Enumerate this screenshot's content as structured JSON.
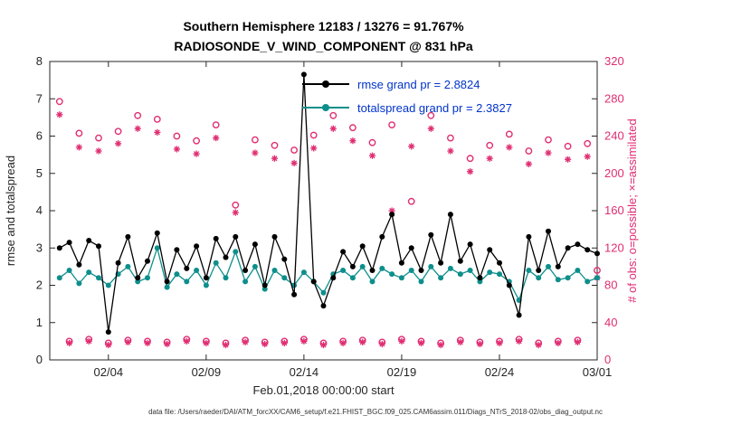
{
  "footer": {
    "data_file": "data file: /Users/raeder/DAI/ATM_forcXX/CAM6_setup/f.e21.FHIST_BGC.f09_025.CAM6assim.011/Diags_NTrS_2018-02/obs_diag_output.nc"
  },
  "colors": {
    "rmse": "#000000",
    "totalspread": "#0d8f8c",
    "obs": "#e02d72",
    "legend_text": "#0033cc",
    "axes": "#262626"
  },
  "chart_data": {
    "type": "line",
    "title_line1": "Southern Hemisphere 12183 / 13276 = 91.767%",
    "title_line2": "RADIOSONDE_V_WIND_COMPONENT @ 831 hPa",
    "xlabel": "Feb.01,2018 00:00:00 start",
    "ylabel_left": "rmse and totalspread",
    "ylabel_right": "# of obs: o=possible; ×=assimilated",
    "xlim": [
      1,
      29
    ],
    "ylim_left": [
      0,
      8
    ],
    "ylim_right": [
      0,
      320
    ],
    "grid": false,
    "xticks": [
      4,
      9,
      14,
      19,
      24,
      29
    ],
    "xtick_labels": [
      "02/04",
      "02/09",
      "02/14",
      "02/19",
      "02/24",
      "03/01"
    ],
    "yticks_left": [
      0,
      1,
      2,
      3,
      4,
      5,
      6,
      7,
      8
    ],
    "yticks_right": [
      0,
      40,
      80,
      120,
      160,
      200,
      240,
      280,
      320
    ],
    "x": [
      1.5,
      2,
      2.5,
      3,
      3.5,
      4,
      4.5,
      5,
      5.5,
      6,
      6.5,
      7,
      7.5,
      8,
      8.5,
      9,
      9.5,
      10,
      10.5,
      11,
      11.5,
      12,
      12.5,
      13,
      13.5,
      14,
      14.5,
      15,
      15.5,
      16,
      16.5,
      17,
      17.5,
      18,
      18.5,
      19,
      19.5,
      20,
      20.5,
      21,
      21.5,
      22,
      22.5,
      23,
      23.5,
      24,
      24.5,
      25,
      25.5,
      26,
      26.5,
      27,
      27.5,
      28,
      28.5,
      29
    ],
    "series": [
      {
        "name": "rmse",
        "axis": "left",
        "color": "#000000",
        "marker": "dot",
        "line": true,
        "values": [
          3.0,
          3.15,
          2.55,
          3.2,
          3.05,
          0.75,
          2.6,
          3.3,
          2.2,
          2.65,
          3.4,
          2.1,
          2.95,
          2.45,
          3.05,
          2.2,
          3.25,
          2.75,
          3.3,
          2.4,
          3.1,
          2.0,
          3.3,
          2.7,
          1.75,
          7.65,
          2.1,
          1.45,
          2.2,
          2.9,
          2.5,
          3.05,
          2.4,
          3.3,
          3.9,
          2.6,
          3.0,
          2.4,
          3.35,
          2.6,
          3.9,
          2.65,
          3.1,
          2.2,
          2.95,
          2.6,
          2.0,
          1.2,
          3.3,
          2.4,
          3.45,
          2.5,
          3.0,
          3.1,
          2.95,
          2.85
        ]
      },
      {
        "name": "totalspread",
        "axis": "left",
        "color": "#0d8f8c",
        "marker": "dot",
        "line": true,
        "values": [
          2.2,
          2.4,
          2.05,
          2.35,
          2.2,
          2.0,
          2.3,
          2.5,
          2.1,
          2.2,
          3.0,
          1.95,
          2.3,
          2.1,
          2.4,
          2.0,
          2.6,
          2.2,
          2.9,
          2.1,
          2.5,
          1.9,
          2.4,
          2.2,
          2.0,
          2.35,
          2.1,
          1.8,
          2.3,
          2.4,
          2.2,
          2.5,
          2.1,
          2.45,
          2.3,
          2.2,
          2.4,
          2.1,
          2.5,
          2.2,
          2.45,
          2.3,
          2.4,
          2.1,
          2.35,
          2.3,
          2.1,
          1.6,
          2.4,
          2.2,
          2.5,
          2.15,
          2.2,
          2.4,
          2.1,
          2.2
        ]
      },
      {
        "name": "possible",
        "axis": "right",
        "color": "#e02d72",
        "marker": "circle",
        "line": false,
        "values": [
          277,
          20,
          243,
          22,
          238,
          18,
          245,
          21,
          262,
          20,
          258,
          19,
          240,
          22,
          235,
          20,
          252,
          18,
          166,
          21,
          236,
          19,
          230,
          20,
          225,
          22,
          241,
          18,
          262,
          20,
          249,
          21,
          233,
          19,
          252,
          22,
          170,
          20,
          262,
          18,
          238,
          21,
          216,
          19,
          230,
          20,
          242,
          22,
          224,
          18,
          236,
          20,
          229,
          21,
          232,
          96
        ]
      },
      {
        "name": "assimilated",
        "axis": "right",
        "color": "#e02d72",
        "marker": "asterisk",
        "line": false,
        "values": [
          263,
          18,
          228,
          20,
          224,
          16,
          232,
          19,
          248,
          18,
          244,
          17,
          226,
          20,
          221,
          18,
          238,
          16,
          158,
          19,
          222,
          17,
          216,
          18,
          211,
          20,
          227,
          16,
          248,
          18,
          235,
          19,
          219,
          17,
          160,
          20,
          229,
          18,
          248,
          16,
          224,
          19,
          202,
          17,
          216,
          18,
          228,
          20,
          210,
          16,
          222,
          18,
          215,
          19,
          218,
          88
        ]
      }
    ],
    "legend": {
      "text_color": "#0033cc",
      "entries": [
        {
          "label": "rmse grand pr = 2.8824",
          "color": "#000000"
        },
        {
          "label": "totalspread grand pr = 2.3827",
          "color": "#0d8f8c"
        }
      ]
    }
  }
}
